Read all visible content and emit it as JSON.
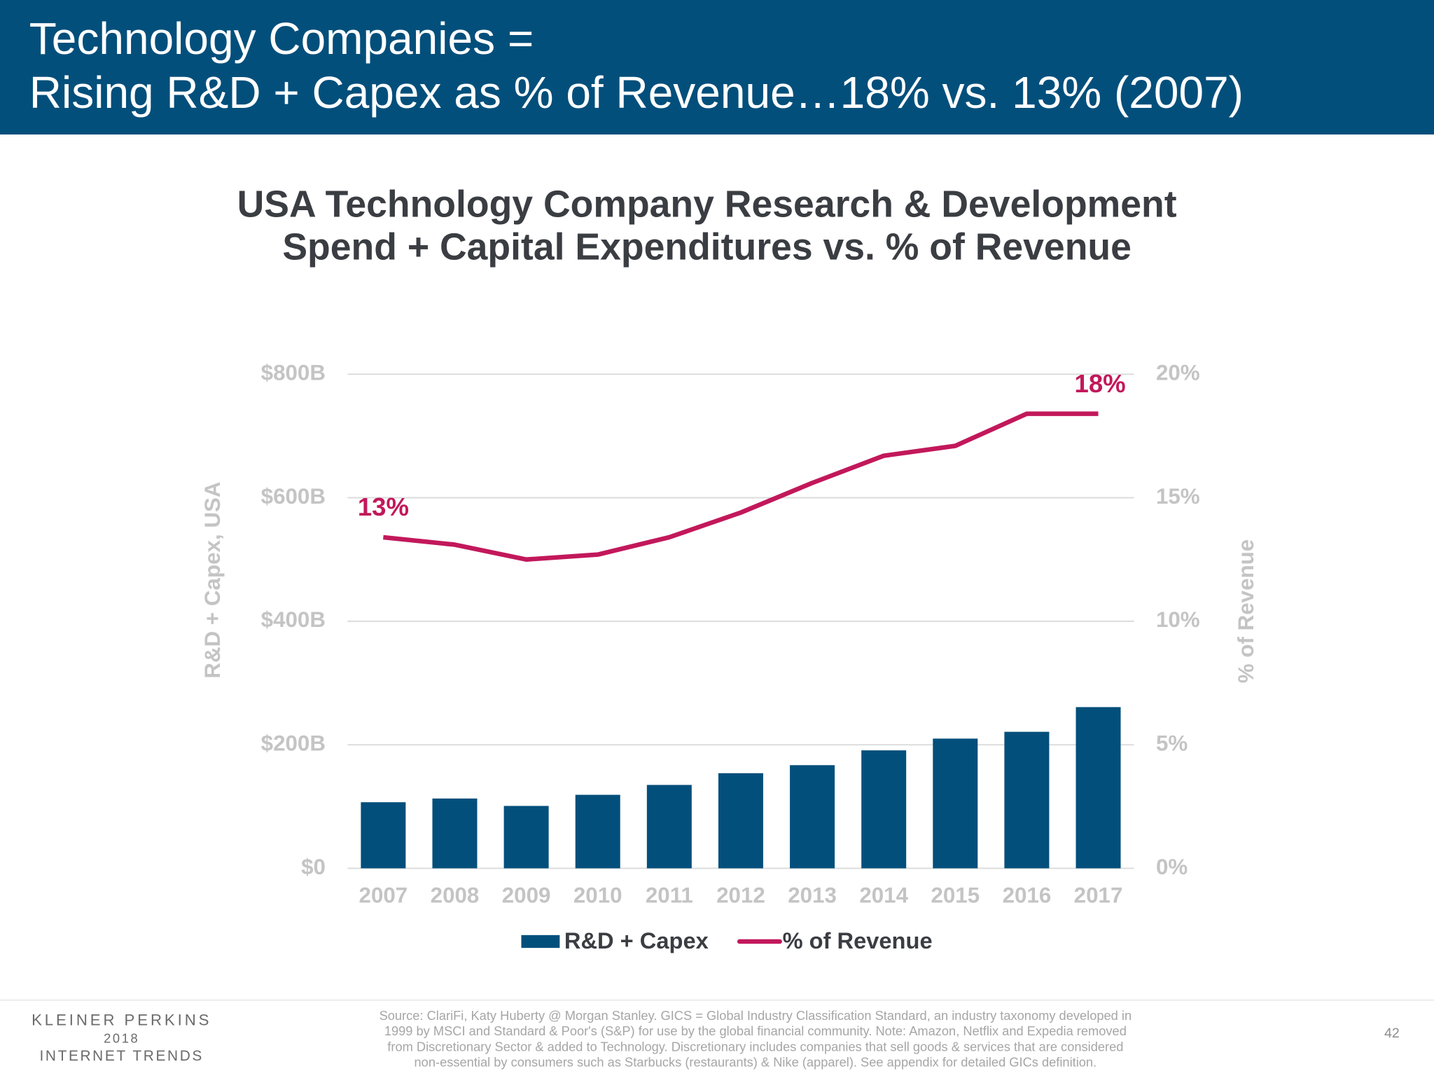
{
  "header": {
    "title": [
      "Technology Companies =",
      "Rising R&D + Capex as % of Revenue…18% vs. 13% (2007)"
    ]
  },
  "chart_data": {
    "type": "bar-line",
    "title": [
      "USA Technology Company Research & Development",
      "Spend + Capital Expenditures vs. % of Revenue"
    ],
    "y_label": "R&D + Capex, USA",
    "y2_label": "% of Revenue",
    "categories": [
      "2007",
      "2008",
      "2009",
      "2010",
      "2011",
      "2012",
      "2013",
      "2014",
      "2015",
      "2016",
      "2017"
    ],
    "series": [
      {
        "name": "R&D + Capex",
        "type": "bar",
        "color": "#034f7b",
        "values": [
          107,
          113,
          101,
          119,
          135,
          154,
          167,
          191,
          210,
          221,
          261
        ]
      },
      {
        "name": "% of Revenue",
        "type": "line",
        "axis": "y2",
        "color": "#c2185b",
        "values": [
          13.4,
          13.1,
          12.5,
          12.7,
          13.4,
          14.4,
          15.6,
          16.7,
          17.1,
          18.4,
          18.4
        ],
        "value_labels": [
          "13%",
          null,
          null,
          null,
          null,
          null,
          null,
          null,
          null,
          null,
          "18%"
        ]
      }
    ],
    "ylim": [
      0,
      800
    ],
    "yticks": [
      {
        "value": 0,
        "label": "$0"
      },
      {
        "value": 200,
        "label": "$200B"
      },
      {
        "value": 400,
        "label": "$400B"
      },
      {
        "value": 600,
        "label": "$600B"
      },
      {
        "value": 800,
        "label": "$800B"
      }
    ],
    "y2lim": [
      0,
      20
    ],
    "y2ticks": [
      {
        "value": 0,
        "label": "0%"
      },
      {
        "value": 5,
        "label": "5%"
      },
      {
        "value": 10,
        "label": "10%"
      },
      {
        "value": 15,
        "label": "15%"
      },
      {
        "value": 20,
        "label": "20%"
      }
    ],
    "grid": true,
    "legend": "bottom"
  },
  "footer": {
    "brand": [
      "KLEINER PERKINS",
      "2018",
      "INTERNET TRENDS"
    ],
    "source": [
      "Source: ClariFi, Katy Huberty @ Morgan Stanley. GICS = Global Industry Classification Standard, an industry taxonomy developed in",
      "1999 by MSCI and Standard & Poor's (S&P) for use by the global financial community. Note: Amazon, Netflix and Expedia removed",
      "from Discretionary Sector & added to Technology. Discretionary includes companies that sell goods & services that are considered",
      "non-essential by consumers such as Starbucks (restaurants) & Nike (apparel). See appendix for detailed GICs definition."
    ],
    "page": "42"
  }
}
